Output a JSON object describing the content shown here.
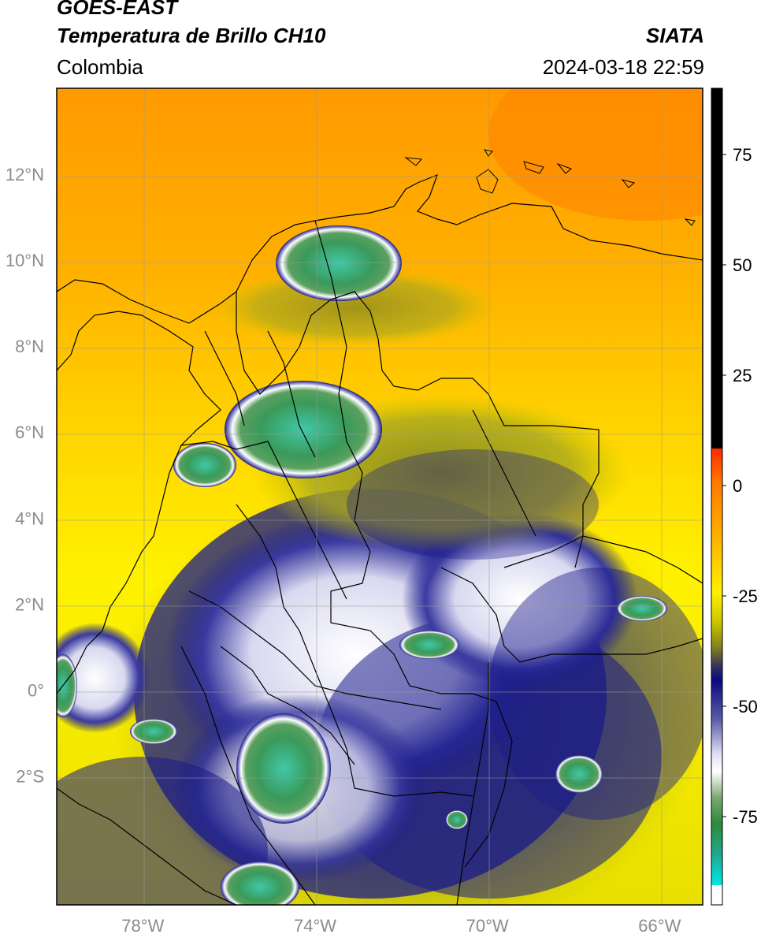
{
  "header": {
    "title_line1": "GOES-EAST",
    "title_line2": "Temperatura de Brillo CH10",
    "subtitle": "Colombia",
    "organization": "SIATA",
    "datetime": "2024-03-18 22:59"
  },
  "map": {
    "lon_range": [
      -80,
      -65
    ],
    "lat_range": [
      -5,
      14
    ],
    "lat_ticks": [
      {
        "value": 12,
        "label": "12°N"
      },
      {
        "value": 10,
        "label": "10°N"
      },
      {
        "value": 8,
        "label": "8°N"
      },
      {
        "value": 6,
        "label": "6°N"
      },
      {
        "value": 4,
        "label": "4°N"
      },
      {
        "value": 2,
        "label": "2°N"
      },
      {
        "value": 0,
        "label": "0°"
      },
      {
        "value": -2,
        "label": "2°S"
      }
    ],
    "lon_ticks": [
      {
        "value": -78,
        "label": "78°W"
      },
      {
        "value": -74,
        "label": "74°W"
      },
      {
        "value": -70,
        "label": "70°W"
      },
      {
        "value": -66,
        "label": "66°W"
      }
    ],
    "gridlines": true,
    "colors": {
      "warm_orange": "#ff8a00",
      "orange": "#ffb000",
      "yellow": "#fff200",
      "olive": "#9a9a10",
      "navy": "#1a1a8a",
      "white": "#f4f4ff",
      "green": "#3a9a4a",
      "teal": "#40c8a8"
    }
  },
  "colorbar": {
    "range": [
      -95,
      90
    ],
    "ticks": [
      {
        "value": 75,
        "label": "75"
      },
      {
        "value": 50,
        "label": "50"
      },
      {
        "value": 25,
        "label": "25"
      },
      {
        "value": 0,
        "label": "0"
      },
      {
        "value": -25,
        "label": "-25"
      },
      {
        "value": -50,
        "label": "-50"
      },
      {
        "value": -75,
        "label": "-75"
      }
    ]
  }
}
